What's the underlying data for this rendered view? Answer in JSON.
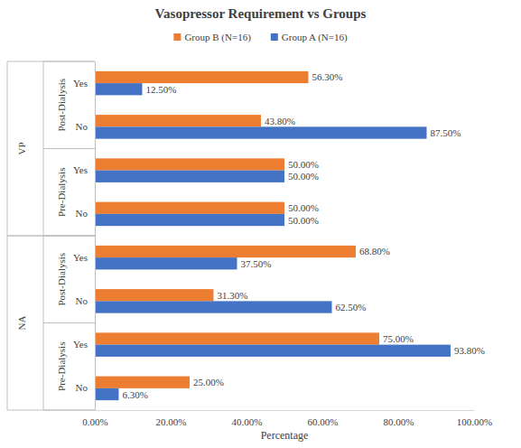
{
  "chart_data": {
    "type": "bar",
    "orientation": "horizontal",
    "title": "Vasopressor Requirement vs Groups",
    "x_label": "Percentage",
    "categories": [
      [
        "VP",
        "Post-Dialysis",
        "Yes"
      ],
      [
        "VP",
        "Post-Dialysis",
        "No"
      ],
      [
        "VP",
        "Pre-Dialysis",
        "Yes"
      ],
      [
        "VP",
        "Pre-Dialysis",
        "No"
      ],
      [
        "NA",
        "Post-Dialysis",
        "Yes"
      ],
      [
        "NA",
        "Post-Dialysis",
        "No"
      ],
      [
        "NA",
        "Pre-Dialysis",
        "Yes"
      ],
      [
        "NA",
        "Pre-Dialysis",
        "No"
      ]
    ],
    "series": [
      {
        "name": "Group B (N=16)",
        "color": "#ed7d31",
        "values": [
          56.3,
          43.8,
          50,
          50,
          68.8,
          31.3,
          75,
          25
        ],
        "value_labels": [
          "56.30%",
          "43.80%",
          "50.00%",
          "50.00%",
          "68.80%",
          "31.30%",
          "75.00%",
          "25.00%"
        ]
      },
      {
        "name": "Group A (N=16)",
        "color": "#4472c4",
        "values": [
          12.5,
          87.5,
          50,
          50,
          37.5,
          62.5,
          93.8,
          6.3
        ],
        "value_labels": [
          "12.50%",
          "87.50%",
          "50.00%",
          "50.00%",
          "37.50%",
          "62.50%",
          "93.80%",
          "6.30%"
        ]
      }
    ],
    "xlim": [
      0,
      100
    ],
    "xticks": [
      {
        "value": 0,
        "label": "0.00%"
      },
      {
        "value": 20,
        "label": "20.00%"
      },
      {
        "value": 40,
        "label": "40.00%"
      },
      {
        "value": 60,
        "label": "60.00%"
      },
      {
        "value": 80,
        "label": "80.00%"
      },
      {
        "value": 100,
        "label": "100.00%"
      }
    ],
    "grid": false,
    "legend": "top",
    "data_labels": true
  }
}
